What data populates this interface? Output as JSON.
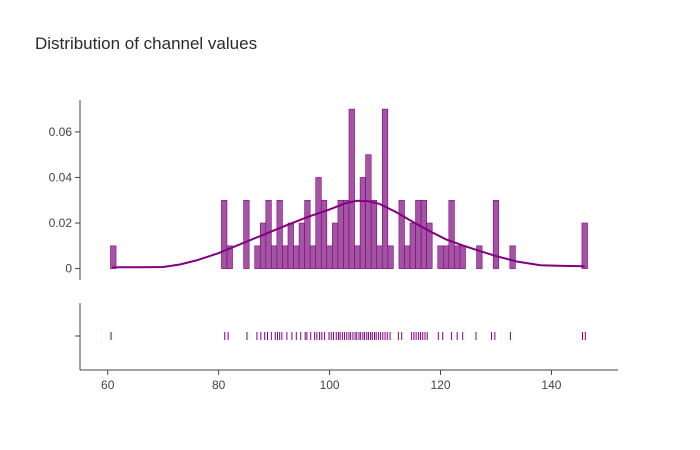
{
  "chart_data": {
    "type": "bar",
    "title": "Distribution of channel values",
    "xlabel": "",
    "ylabel": "",
    "xlim": [
      55,
      152
    ],
    "ylim": [
      -0.005,
      0.074
    ],
    "x_ticks": [
      60,
      80,
      100,
      120,
      140
    ],
    "y_ticks": [
      0,
      0.02,
      0.04,
      0.06
    ],
    "x_tick_labels": [
      "60",
      "80",
      "100",
      "120",
      "140"
    ],
    "y_tick_labels": [
      "0",
      "0.02",
      "0.04",
      "0.06"
    ],
    "bin_width": 1,
    "grid": false,
    "legend": "none",
    "colors": {
      "series": "#800080",
      "bar_fill": "#a355a3"
    },
    "series": [
      {
        "type": "histogram",
        "bins": [
          {
            "x0": 60.5,
            "y": 0.01
          },
          {
            "x0": 80.5,
            "y": 0.03
          },
          {
            "x0": 81.5,
            "y": 0.01
          },
          {
            "x0": 84.5,
            "y": 0.03
          },
          {
            "x0": 86.5,
            "y": 0.01
          },
          {
            "x0": 87.5,
            "y": 0.02
          },
          {
            "x0": 88.5,
            "y": 0.03
          },
          {
            "x0": 89.5,
            "y": 0.01
          },
          {
            "x0": 90.5,
            "y": 0.03
          },
          {
            "x0": 91.5,
            "y": 0.01
          },
          {
            "x0": 92.5,
            "y": 0.02
          },
          {
            "x0": 93.5,
            "y": 0.01
          },
          {
            "x0": 94.5,
            "y": 0.02
          },
          {
            "x0": 95.5,
            "y": 0.03
          },
          {
            "x0": 96.5,
            "y": 0.01
          },
          {
            "x0": 97.5,
            "y": 0.04
          },
          {
            "x0": 98.5,
            "y": 0.03
          },
          {
            "x0": 99.5,
            "y": 0.01
          },
          {
            "x0": 100.5,
            "y": 0.02
          },
          {
            "x0": 101.5,
            "y": 0.03
          },
          {
            "x0": 102.5,
            "y": 0.03
          },
          {
            "x0": 103.5,
            "y": 0.07
          },
          {
            "x0": 104.5,
            "y": 0.01
          },
          {
            "x0": 105.5,
            "y": 0.04
          },
          {
            "x0": 106.5,
            "y": 0.05
          },
          {
            "x0": 107.5,
            "y": 0.03
          },
          {
            "x0": 108.5,
            "y": 0.01
          },
          {
            "x0": 109.5,
            "y": 0.07
          },
          {
            "x0": 110.5,
            "y": 0.01
          },
          {
            "x0": 112.5,
            "y": 0.03
          },
          {
            "x0": 113.5,
            "y": 0.01
          },
          {
            "x0": 114.5,
            "y": 0.02
          },
          {
            "x0": 115.5,
            "y": 0.03
          },
          {
            "x0": 116.5,
            "y": 0.03
          },
          {
            "x0": 117.5,
            "y": 0.02
          },
          {
            "x0": 119.5,
            "y": 0.01
          },
          {
            "x0": 120.5,
            "y": 0.01
          },
          {
            "x0": 121.5,
            "y": 0.03
          },
          {
            "x0": 122.5,
            "y": 0.01
          },
          {
            "x0": 123.5,
            "y": 0.01
          },
          {
            "x0": 126.5,
            "y": 0.01
          },
          {
            "x0": 129.5,
            "y": 0.03
          },
          {
            "x0": 132.5,
            "y": 0.01
          },
          {
            "x0": 145.5,
            "y": 0.02
          }
        ]
      },
      {
        "type": "line",
        "x": [
          60.8,
          62,
          66,
          70,
          73,
          76,
          80,
          84,
          88,
          92,
          96,
          100,
          103,
          105,
          107,
          109,
          112,
          115,
          118,
          121,
          124,
          127,
          130,
          134,
          138,
          142,
          146
        ],
        "y": [
          0.0005,
          0.0006,
          0.0006,
          0.0007,
          0.0018,
          0.0036,
          0.0068,
          0.0108,
          0.0148,
          0.0188,
          0.0226,
          0.026,
          0.0288,
          0.0298,
          0.0296,
          0.0284,
          0.0248,
          0.0205,
          0.0165,
          0.0128,
          0.0102,
          0.0078,
          0.0055,
          0.003,
          0.0015,
          0.0012,
          0.001
        ]
      },
      {
        "type": "rug",
        "values": [
          60.6,
          81.1,
          81.7,
          85.1,
          86.9,
          87.6,
          88.3,
          88.8,
          89.5,
          90.2,
          90.6,
          91.0,
          91.4,
          92.3,
          93.2,
          94.0,
          94.8,
          95.6,
          95.9,
          96.6,
          97.3,
          97.7,
          98.2,
          98.6,
          99.1,
          99.9,
          100.3,
          100.7,
          101.2,
          101.6,
          101.9,
          102.3,
          102.7,
          103.1,
          103.5,
          103.8,
          104.2,
          104.6,
          104.9,
          105.3,
          105.6,
          106.0,
          106.3,
          106.7,
          107.0,
          107.4,
          107.7,
          108.1,
          108.4,
          108.8,
          109.2,
          109.6,
          110.0,
          110.4,
          110.9,
          112.4,
          113.0,
          114.8,
          115.2,
          115.6,
          116.0,
          116.4,
          116.8,
          117.2,
          117.6,
          119.6,
          120.4,
          122.0,
          123.0,
          124.0,
          126.4,
          129.2,
          129.8,
          132.6,
          145.6,
          146.1
        ]
      }
    ]
  }
}
